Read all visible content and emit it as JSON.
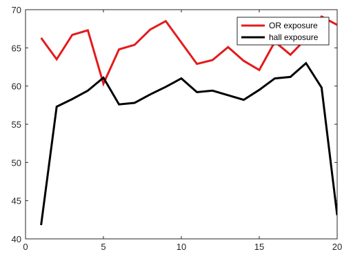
{
  "chart_data": {
    "type": "line",
    "title": "",
    "xlabel": "",
    "ylabel": "",
    "xlim": [
      0,
      20
    ],
    "ylim": [
      40,
      70
    ],
    "x_ticks": [
      0,
      5,
      10,
      15,
      20
    ],
    "y_ticks": [
      40,
      45,
      50,
      55,
      60,
      65,
      70
    ],
    "grid": false,
    "legend_position": "top-right",
    "x": [
      1,
      2,
      3,
      4,
      5,
      6,
      7,
      8,
      9,
      10,
      11,
      12,
      13,
      14,
      15,
      16,
      17,
      18,
      19,
      20
    ],
    "series": [
      {
        "name": "OR exposure",
        "color": "#e41a1c",
        "values": [
          66.3,
          63.5,
          66.7,
          67.3,
          60.3,
          64.8,
          65.4,
          67.4,
          68.5,
          65.7,
          62.9,
          63.4,
          65.1,
          63.3,
          62.1,
          65.8,
          64.1,
          66.2,
          69.1,
          68.0
        ]
      },
      {
        "name": "hall exposure",
        "color": "#000000",
        "values": [
          41.8,
          57.3,
          58.3,
          59.4,
          61.1,
          57.6,
          57.8,
          58.9,
          59.9,
          61.0,
          59.2,
          59.4,
          58.8,
          58.2,
          59.5,
          61.0,
          61.2,
          63.0,
          59.8,
          43.1
        ]
      }
    ]
  }
}
